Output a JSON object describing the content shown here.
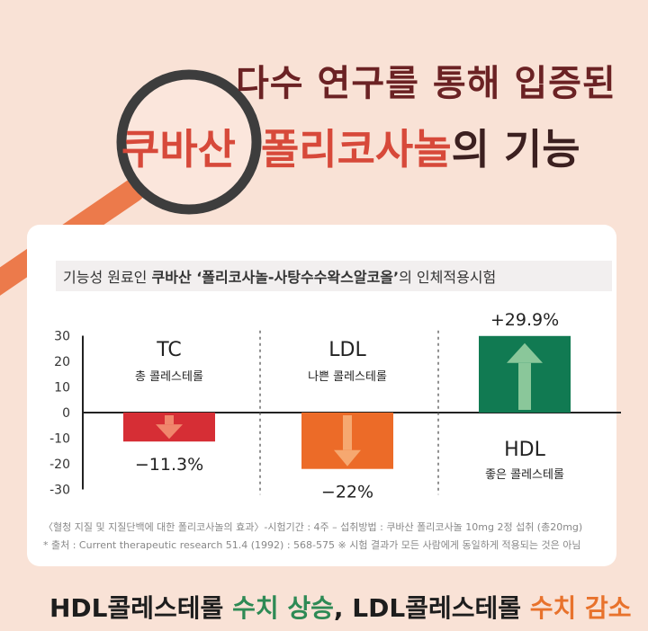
{
  "header": {
    "line1": "다수 연구를 통해 입증된",
    "brand": "쿠바산",
    "ingredient": "폴리코사놀",
    "suffix": "의 기능"
  },
  "study": {
    "lead": "기능성 원료인 ",
    "bold": "쿠바산 ‘폴리코사놀-사탕수수왁스알코올’",
    "tail": "의 인체적용시험"
  },
  "chart_data": {
    "type": "bar",
    "yticks": [
      30,
      20,
      10,
      0,
      -10,
      -20,
      -30
    ],
    "ylim": [
      -30,
      30
    ],
    "grid": false,
    "categories": [
      "TC",
      "LDL",
      "HDL"
    ],
    "descriptions": [
      "총 콜레스테롤",
      "나쁜 콜레스테롤",
      "좋은 콜레스테롤"
    ],
    "values": [
      -11.3,
      -22,
      29.9
    ],
    "value_labels": [
      "−11.3%",
      "−22%",
      "+29.9%"
    ],
    "colors": [
      "#d62e35",
      "#ec6b28",
      "#117a52"
    ],
    "arrow_colors": [
      "#f0866c",
      "#f6a870",
      "#8ac79a"
    ]
  },
  "footnotes": {
    "line1": "〈혈청 지질 및 지질단백에 대한 폴리코사놀의 효과〉-시험기간 : 4주 – 섭취방법 : 쿠바산 폴리코사놀 10mg 2정 섭취 (총20mg)",
    "line2": "* 출처 : Current therapeutic research 51.4 (1992) : 568-575   ※ 시험 결과가 모든 사람에게 동일하게 적용되는 것은 아님"
  },
  "summary": {
    "p1": "HDL콜레스테롤 ",
    "p2": "수치 상승",
    "p3": ", LDL콜레스테롤 ",
    "p4": "수치 감소"
  }
}
